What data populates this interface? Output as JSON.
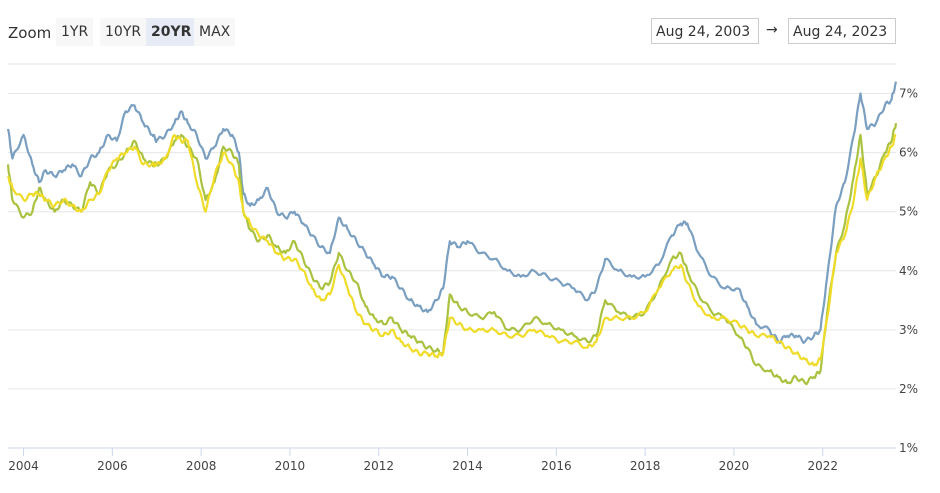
{
  "toolbar": {
    "zoom_label": "Zoom",
    "buttons": [
      {
        "label": "1YR",
        "active": false
      },
      {
        "label": "10YR",
        "active": false
      },
      {
        "label": "20YR",
        "active": true
      },
      {
        "label": "MAX",
        "active": false
      }
    ],
    "from_date": "Aug 24, 2003",
    "to_date": "Aug 24, 2023",
    "arrow": "→"
  },
  "chart_data": {
    "type": "line",
    "title": "",
    "xlabel": "",
    "ylabel": "",
    "xlim": [
      2003.65,
      2023.65
    ],
    "ylim": [
      1,
      7.5
    ],
    "grid": true,
    "y_side": "right",
    "x_ticks": [
      "2004",
      "2006",
      "2008",
      "2010",
      "2012",
      "2014",
      "2016",
      "2018",
      "2020",
      "2022"
    ],
    "y_ticks": [
      "1%",
      "2%",
      "3%",
      "4%",
      "5%",
      "6%",
      "7%"
    ],
    "series": [
      {
        "color": "#7a9fc0",
        "x": [
          2003.65,
          2003.75,
          2004.0,
          2004.2,
          2004.35,
          2004.5,
          2004.7,
          2004.9,
          2005.1,
          2005.3,
          2005.5,
          2005.7,
          2005.9,
          2006.1,
          2006.3,
          2006.5,
          2006.7,
          2006.9,
          2007.0,
          2007.2,
          2007.4,
          2007.55,
          2007.7,
          2007.9,
          2008.1,
          2008.3,
          2008.5,
          2008.7,
          2008.85,
          2008.95,
          2009.1,
          2009.3,
          2009.5,
          2009.7,
          2009.9,
          2010.1,
          2010.3,
          2010.5,
          2010.7,
          2010.9,
          2011.1,
          2011.3,
          2011.5,
          2011.7,
          2011.9,
          2012.1,
          2012.3,
          2012.5,
          2012.7,
          2012.9,
          2013.1,
          2013.3,
          2013.45,
          2013.6,
          2013.8,
          2014.0,
          2014.3,
          2014.6,
          2014.9,
          2015.2,
          2015.5,
          2015.8,
          2016.1,
          2016.4,
          2016.7,
          2016.9,
          2017.1,
          2017.4,
          2017.7,
          2018.0,
          2018.3,
          2018.6,
          2018.8,
          2018.95,
          2019.2,
          2019.5,
          2019.8,
          2020.1,
          2020.3,
          2020.5,
          2020.8,
          2021.0,
          2021.2,
          2021.4,
          2021.6,
          2021.8,
          2021.95,
          2022.1,
          2022.3,
          2022.5,
          2022.7,
          2022.85,
          2023.0,
          2023.2,
          2023.4,
          2023.55,
          2023.65
        ],
        "y": [
          6.4,
          5.9,
          6.3,
          5.8,
          5.5,
          5.7,
          5.6,
          5.7,
          5.8,
          5.6,
          5.9,
          6.0,
          6.3,
          6.2,
          6.7,
          6.8,
          6.5,
          6.3,
          6.2,
          6.3,
          6.5,
          6.7,
          6.5,
          6.3,
          5.9,
          6.1,
          6.4,
          6.3,
          6.0,
          5.3,
          5.1,
          5.2,
          5.4,
          5.0,
          4.9,
          5.0,
          4.8,
          4.6,
          4.4,
          4.3,
          4.9,
          4.7,
          4.5,
          4.3,
          4.1,
          3.9,
          3.9,
          3.7,
          3.5,
          3.4,
          3.3,
          3.5,
          3.7,
          4.5,
          4.4,
          4.5,
          4.3,
          4.2,
          4.0,
          3.9,
          4.0,
          3.9,
          3.8,
          3.7,
          3.5,
          3.7,
          4.2,
          4.0,
          3.9,
          3.9,
          4.1,
          4.6,
          4.8,
          4.8,
          4.3,
          3.9,
          3.7,
          3.7,
          3.4,
          3.1,
          3.0,
          2.8,
          2.9,
          2.9,
          2.8,
          2.9,
          3.0,
          3.9,
          5.1,
          5.5,
          6.3,
          7.0,
          6.4,
          6.5,
          6.8,
          6.9,
          7.2
        ]
      },
      {
        "color": "#a9c23f",
        "x": [
          2003.65,
          2003.75,
          2004.0,
          2004.2,
          2004.35,
          2004.5,
          2004.7,
          2004.9,
          2005.1,
          2005.3,
          2005.5,
          2005.7,
          2005.9,
          2006.1,
          2006.3,
          2006.5,
          2006.7,
          2006.9,
          2007.0,
          2007.2,
          2007.4,
          2007.55,
          2007.7,
          2007.9,
          2008.1,
          2008.3,
          2008.5,
          2008.7,
          2008.85,
          2008.95,
          2009.1,
          2009.3,
          2009.5,
          2009.7,
          2009.9,
          2010.1,
          2010.3,
          2010.5,
          2010.7,
          2010.9,
          2011.1,
          2011.3,
          2011.5,
          2011.7,
          2011.9,
          2012.1,
          2012.3,
          2012.5,
          2012.7,
          2012.9,
          2013.1,
          2013.3,
          2013.45,
          2013.6,
          2013.8,
          2014.0,
          2014.3,
          2014.6,
          2014.9,
          2015.2,
          2015.5,
          2015.8,
          2016.1,
          2016.4,
          2016.7,
          2016.9,
          2017.1,
          2017.4,
          2017.7,
          2018.0,
          2018.3,
          2018.6,
          2018.8,
          2018.95,
          2019.2,
          2019.5,
          2019.8,
          2020.1,
          2020.3,
          2020.5,
          2020.8,
          2021.0,
          2021.2,
          2021.4,
          2021.6,
          2021.8,
          2021.95,
          2022.1,
          2022.3,
          2022.5,
          2022.7,
          2022.85,
          2023.0,
          2023.2,
          2023.4,
          2023.55,
          2023.65
        ],
        "y": [
          5.8,
          5.2,
          4.9,
          5.0,
          5.4,
          5.2,
          5.0,
          5.2,
          5.1,
          5.0,
          5.5,
          5.3,
          5.7,
          5.8,
          6.0,
          6.2,
          5.9,
          5.8,
          5.8,
          5.9,
          6.2,
          6.3,
          6.1,
          5.9,
          5.2,
          5.5,
          6.1,
          6.0,
          5.8,
          5.0,
          4.7,
          4.5,
          4.6,
          4.4,
          4.3,
          4.5,
          4.2,
          3.9,
          3.7,
          3.8,
          4.3,
          4.0,
          3.8,
          3.4,
          3.2,
          3.1,
          3.2,
          3.0,
          2.9,
          2.8,
          2.7,
          2.65,
          2.6,
          3.6,
          3.4,
          3.3,
          3.2,
          3.3,
          3.0,
          3.0,
          3.2,
          3.1,
          3.0,
          2.9,
          2.8,
          2.9,
          3.5,
          3.3,
          3.2,
          3.3,
          3.7,
          4.2,
          4.3,
          4.0,
          3.6,
          3.3,
          3.2,
          2.9,
          2.7,
          2.4,
          2.3,
          2.2,
          2.1,
          2.2,
          2.1,
          2.2,
          2.3,
          3.3,
          4.3,
          4.8,
          5.6,
          6.3,
          5.3,
          5.6,
          6.0,
          6.2,
          6.5
        ]
      },
      {
        "color": "#f0dc28",
        "x": [
          2003.65,
          2003.75,
          2004.0,
          2004.2,
          2004.35,
          2004.5,
          2004.7,
          2004.9,
          2005.1,
          2005.3,
          2005.5,
          2005.7,
          2005.9,
          2006.1,
          2006.3,
          2006.5,
          2006.7,
          2006.9,
          2007.0,
          2007.2,
          2007.4,
          2007.55,
          2007.7,
          2007.9,
          2008.1,
          2008.3,
          2008.5,
          2008.7,
          2008.85,
          2008.95,
          2009.1,
          2009.3,
          2009.5,
          2009.7,
          2009.9,
          2010.1,
          2010.3,
          2010.5,
          2010.7,
          2010.9,
          2011.1,
          2011.3,
          2011.5,
          2011.7,
          2011.9,
          2012.1,
          2012.3,
          2012.5,
          2012.7,
          2012.9,
          2013.1,
          2013.3,
          2013.45,
          2013.6,
          2013.8,
          2014.0,
          2014.3,
          2014.6,
          2014.9,
          2015.2,
          2015.5,
          2015.8,
          2016.1,
          2016.4,
          2016.7,
          2016.9,
          2017.1,
          2017.4,
          2017.7,
          2018.0,
          2018.3,
          2018.6,
          2018.8,
          2018.95,
          2019.2,
          2019.5,
          2019.8,
          2020.1,
          2020.3,
          2020.5,
          2020.8,
          2021.0,
          2021.2,
          2021.4,
          2021.6,
          2021.8,
          2021.95,
          2022.1,
          2022.3,
          2022.5,
          2022.7,
          2022.85,
          2023.0,
          2023.2,
          2023.4,
          2023.55,
          2023.65
        ],
        "y": [
          5.6,
          5.4,
          5.2,
          5.3,
          5.3,
          5.2,
          5.1,
          5.2,
          5.1,
          5.0,
          5.2,
          5.3,
          5.7,
          5.9,
          6.0,
          6.1,
          5.8,
          5.8,
          5.8,
          5.9,
          6.3,
          6.2,
          6.2,
          5.5,
          5.0,
          5.6,
          6.0,
          5.8,
          5.5,
          5.0,
          4.8,
          4.6,
          4.5,
          4.3,
          4.2,
          4.2,
          4.0,
          3.7,
          3.5,
          3.6,
          4.1,
          3.7,
          3.3,
          3.1,
          3.0,
          2.9,
          3.0,
          2.8,
          2.7,
          2.6,
          2.6,
          2.55,
          2.6,
          3.2,
          3.1,
          3.0,
          3.0,
          3.0,
          2.9,
          2.9,
          3.0,
          2.9,
          2.8,
          2.8,
          2.7,
          2.8,
          3.2,
          3.2,
          3.2,
          3.3,
          3.7,
          4.0,
          4.1,
          3.8,
          3.4,
          3.2,
          3.2,
          3.1,
          3.0,
          2.9,
          2.9,
          2.8,
          2.7,
          2.6,
          2.5,
          2.4,
          2.5,
          3.2,
          4.3,
          4.6,
          5.2,
          5.9,
          5.2,
          5.6,
          5.9,
          6.1,
          6.3
        ]
      }
    ]
  }
}
